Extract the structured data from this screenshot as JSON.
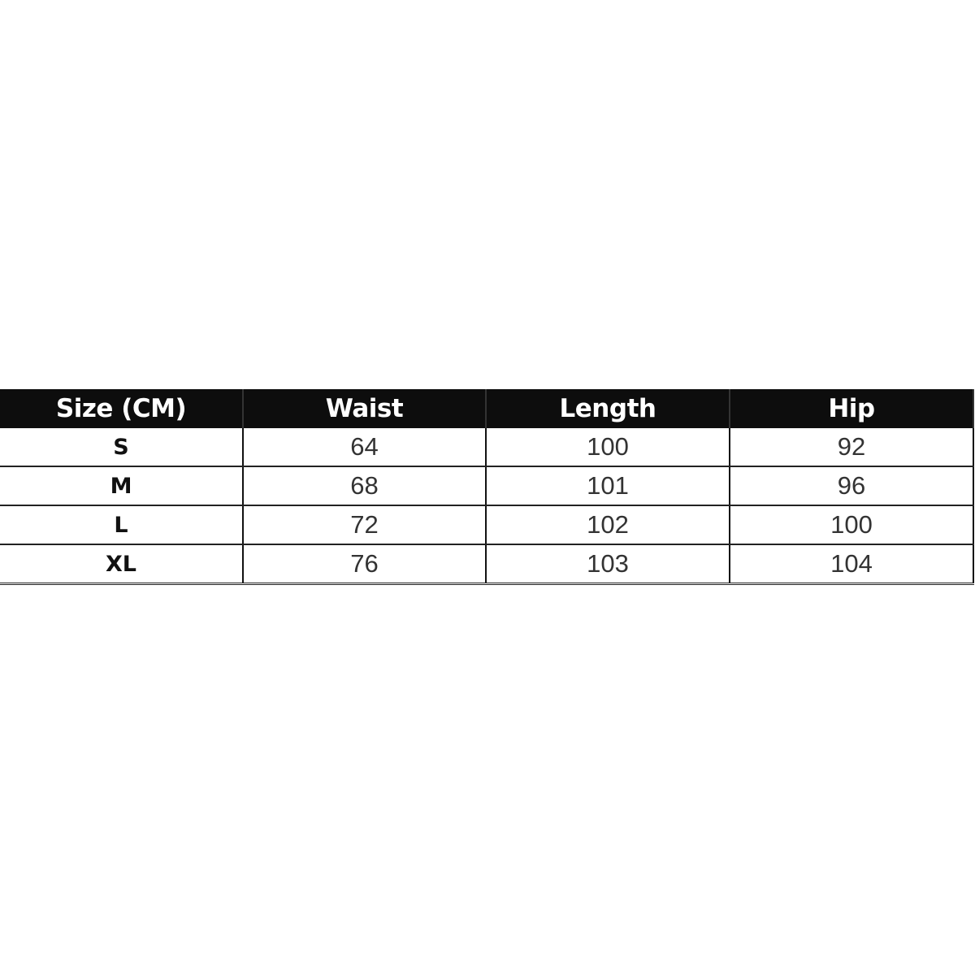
{
  "table": {
    "headers": [
      "Size (CM)",
      "Waist",
      "Length",
      "Hip"
    ],
    "rows": [
      [
        "S",
        "64",
        "100",
        "92"
      ],
      [
        "M",
        "68",
        "101",
        "96"
      ],
      [
        "L",
        "72",
        "102",
        "100"
      ],
      [
        "XL",
        "76",
        "103",
        "104"
      ]
    ]
  }
}
